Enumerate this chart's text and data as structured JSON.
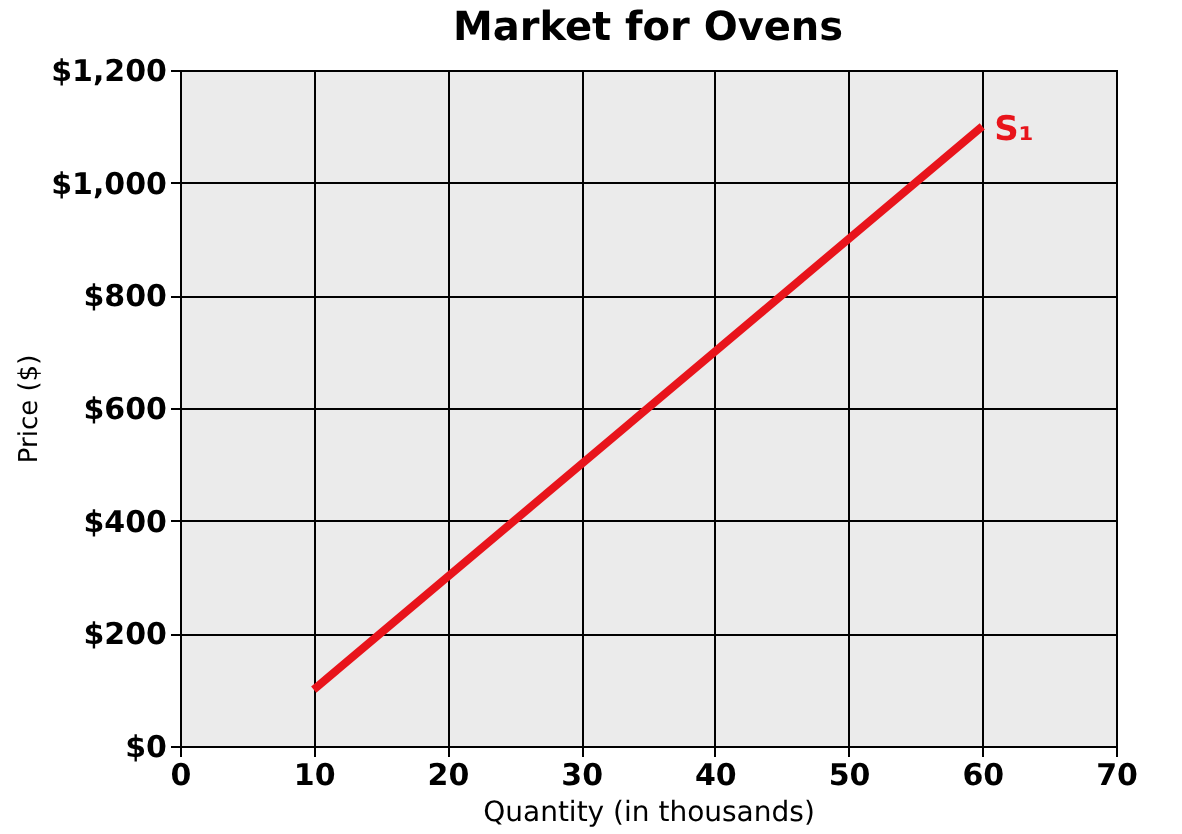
{
  "chart_data": {
    "type": "line",
    "title": "Market for Ovens",
    "xlabel": "Quantity (in thousands)",
    "ylabel": "Price ($)",
    "x": [
      10,
      60
    ],
    "series": [
      {
        "color": "#e8141b",
        "values": [
          100,
          1100
        ]
      }
    ],
    "annotations": [
      {
        "text": "S₁",
        "x": 60,
        "y": 1100
      }
    ],
    "xlim": [
      0,
      70
    ],
    "xticks": [
      0,
      10,
      20,
      30,
      40,
      50,
      60,
      70
    ],
    "ylim": [
      0,
      1200
    ],
    "yticks": [
      {
        "value": 0,
        "label": "$0"
      },
      {
        "value": 200,
        "label": "$200"
      },
      {
        "value": 400,
        "label": "$400"
      },
      {
        "value": 600,
        "label": "$600"
      },
      {
        "value": 800,
        "label": "$800"
      },
      {
        "value": 1000,
        "label": "$1,000"
      },
      {
        "value": 1200,
        "label": "$1,200"
      }
    ],
    "grid": true,
    "marker": "none",
    "line_style": "solid"
  }
}
